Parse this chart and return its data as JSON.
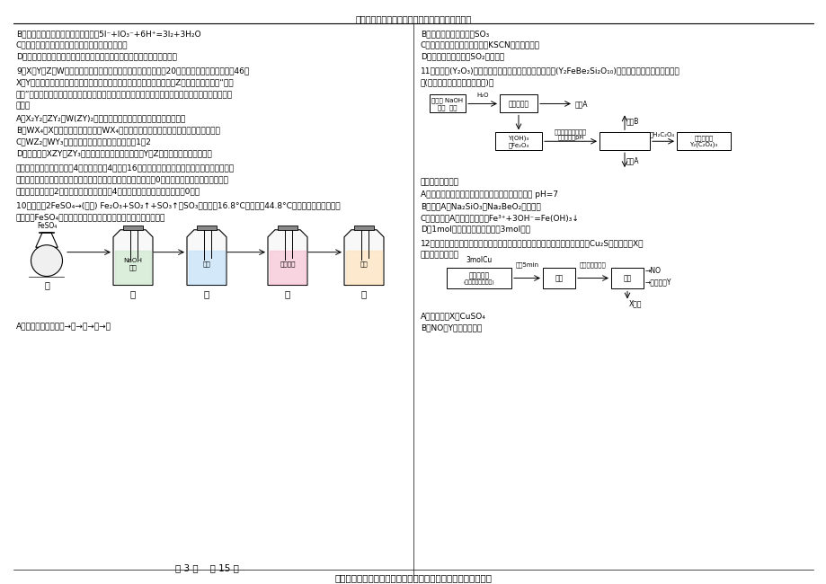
{
  "background_color": "#ffffff",
  "header_text": "衡水备考决胜二三高考化学暑假必刷密卷新高考版",
  "page_info": "第 3 页    共 15 页",
  "footer_text": "一切不按照高考标准进行的训练，都对备战高考没有任何意义！"
}
